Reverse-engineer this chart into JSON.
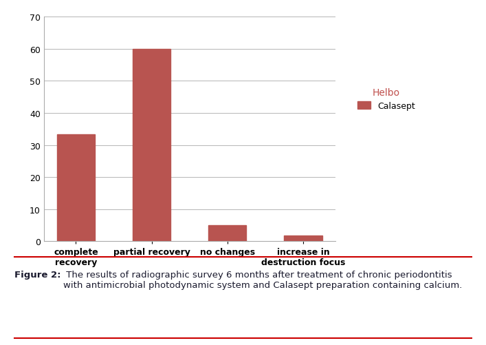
{
  "categories": [
    "complete\nrecovery",
    "partial recovery",
    "no changes",
    "increase in\ndestruction focus"
  ],
  "values": [
    33.3,
    60.0,
    5.0,
    1.7
  ],
  "bar_color": "#B85450",
  "legend_title": "Helbo",
  "legend_label": "Calasept",
  "ylim": [
    0,
    70
  ],
  "yticks": [
    0,
    10,
    20,
    30,
    40,
    50,
    60,
    70
  ],
  "background_color": "#ffffff",
  "caption_bold": "Figure 2:",
  "caption_rest": " The results of radiographic survey 6 months after treatment of chronic periodontitis\nwith antimicrobial photodynamic system and Calasept preparation containing calcium.",
  "caption_fontsize": 9.5,
  "bar_width": 0.5,
  "tick_fontsize": 9,
  "legend_title_color": "#C0504D",
  "legend_title_fontsize": 10,
  "legend_fontsize": 9,
  "line_color": "#CC0000",
  "caption_text_color": "#1a1a2e"
}
